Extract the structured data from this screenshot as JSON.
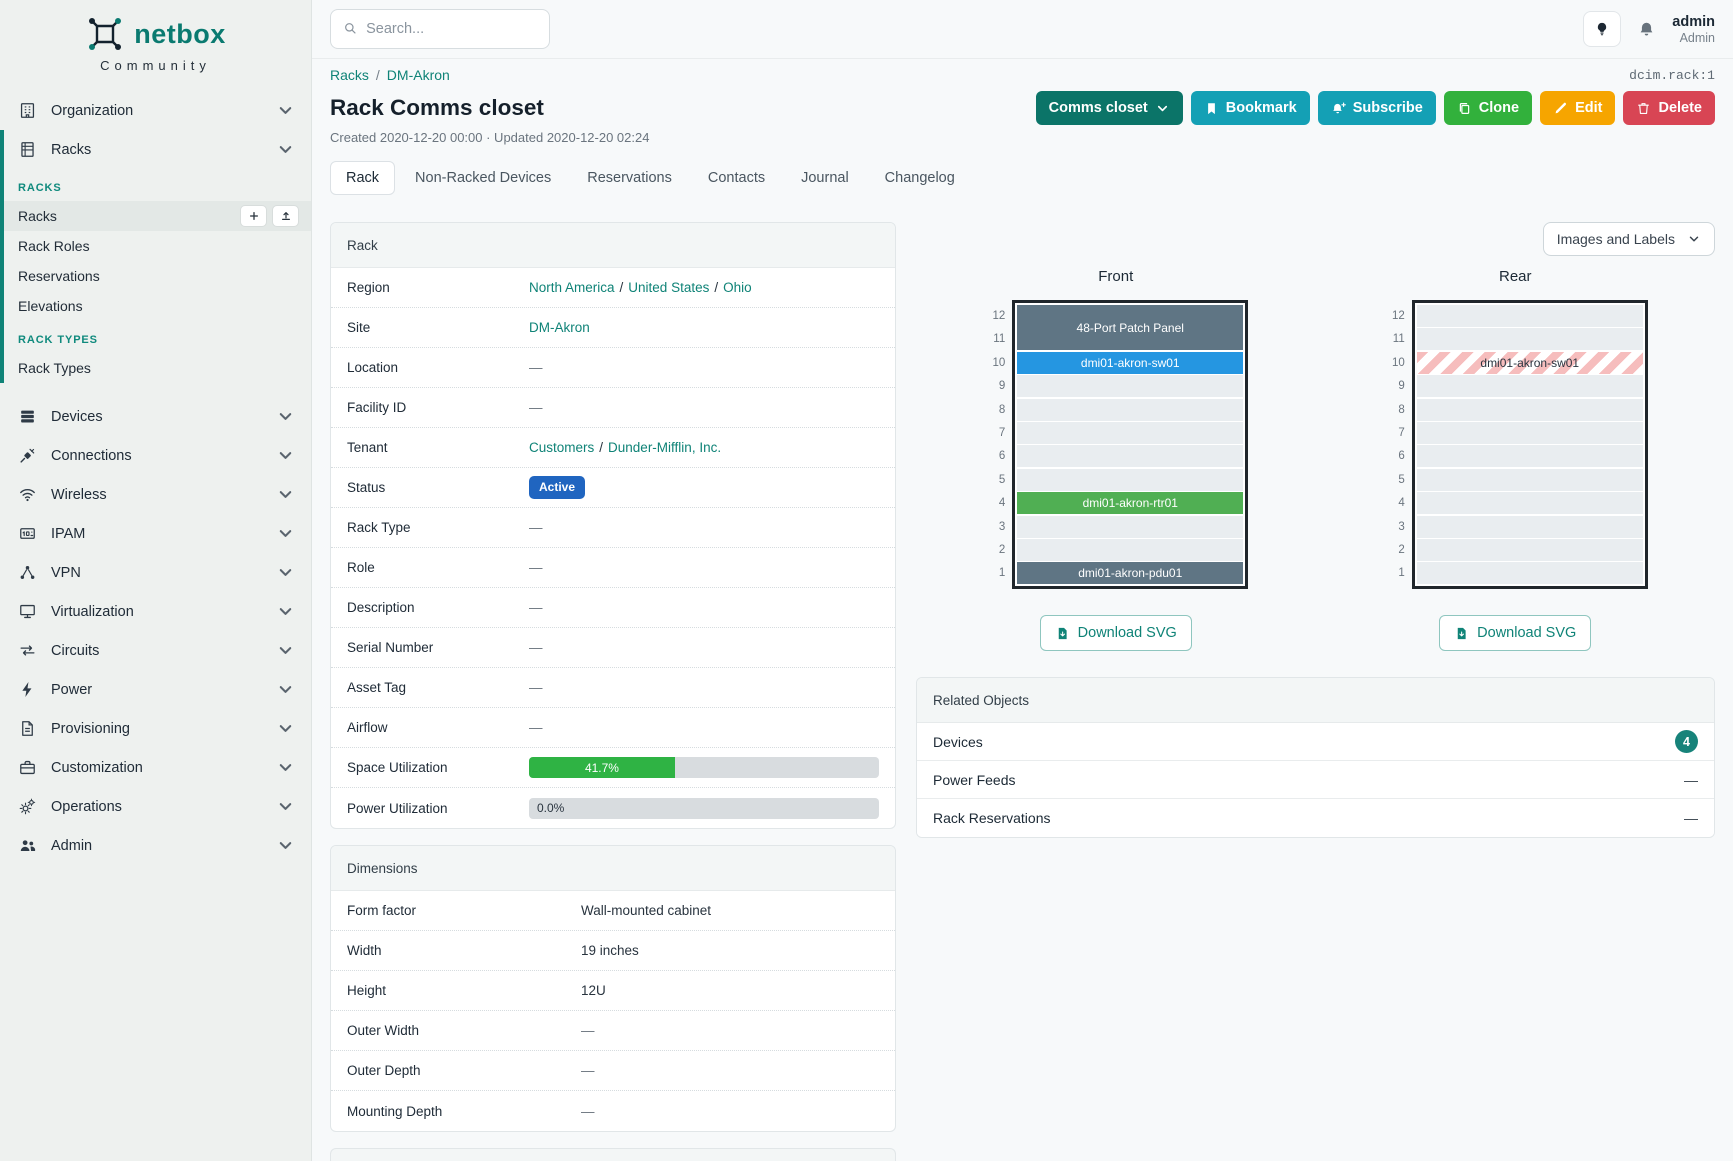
{
  "brand": {
    "name": "netbox",
    "tagline": "Community"
  },
  "topbar": {
    "search_placeholder": "Search...",
    "username": "admin",
    "role": "Admin"
  },
  "page_header": {
    "breadcrumbs": [
      {
        "label": "Racks"
      },
      {
        "label": "DM-Akron"
      }
    ],
    "object_ref": "dcim.rack:1",
    "title": "Rack Comms closet",
    "meta": "Created 2020-12-20 00:00 · Updated 2020-12-20 02:24",
    "buttons": [
      {
        "id": "rename",
        "label": "Comms closet",
        "color": "#0b7468",
        "icon_after": "chevron-down-icon"
      },
      {
        "id": "bookmark",
        "label": "Bookmark",
        "color": "#14a0b5",
        "icon": "bookmark-icon"
      },
      {
        "id": "subscribe",
        "label": "Subscribe",
        "color": "#14a0b5",
        "icon": "bell-plus-icon"
      },
      {
        "id": "clone",
        "label": "Clone",
        "color": "#32b13c",
        "icon": "copy-icon"
      },
      {
        "id": "edit",
        "label": "Edit",
        "color": "#f6a500",
        "icon": "pencil-icon"
      },
      {
        "id": "delete",
        "label": "Delete",
        "color": "#d84554",
        "icon": "trash-icon"
      }
    ]
  },
  "tabs": [
    {
      "label": "Rack",
      "active": true
    },
    {
      "label": "Non-Racked Devices"
    },
    {
      "label": "Reservations"
    },
    {
      "label": "Contacts"
    },
    {
      "label": "Journal"
    },
    {
      "label": "Changelog"
    }
  ],
  "sidebar": {
    "top_items": [
      {
        "label": "Organization",
        "icon": "organization-icon",
        "chevron": true
      },
      {
        "label": "Racks",
        "icon": "racks-icon",
        "chevron": true,
        "expanded": true
      }
    ],
    "racks_menu": {
      "groups": [
        {
          "header": "RACKS",
          "items": [
            {
              "label": "Racks",
              "active": true,
              "actions": [
                {
                  "icon": "plus-icon",
                  "name": "add"
                },
                {
                  "icon": "upload-icon",
                  "name": "import"
                }
              ]
            },
            {
              "label": "Rack Roles"
            },
            {
              "label": "Reservations"
            },
            {
              "label": "Elevations"
            }
          ]
        },
        {
          "header": "RACK TYPES",
          "items": [
            {
              "label": "Rack Types"
            }
          ]
        }
      ]
    },
    "bottom_items": [
      {
        "label": "Devices",
        "icon": "devices-icon",
        "chevron": true
      },
      {
        "label": "Connections",
        "icon": "connections-icon",
        "chevron": true
      },
      {
        "label": "Wireless",
        "icon": "wireless-icon",
        "chevron": true
      },
      {
        "label": "IPAM",
        "icon": "ipam-icon",
        "chevron": true
      },
      {
        "label": "VPN",
        "icon": "vpn-icon",
        "chevron": true
      },
      {
        "label": "Virtualization",
        "icon": "virtualization-icon",
        "chevron": true
      },
      {
        "label": "Circuits",
        "icon": "circuits-icon",
        "chevron": true
      },
      {
        "label": "Power",
        "icon": "power-icon",
        "chevron": true
      },
      {
        "label": "Provisioning",
        "icon": "provisioning-icon",
        "chevron": true
      },
      {
        "label": "Customization",
        "icon": "customization-icon",
        "chevron": true
      },
      {
        "label": "Operations",
        "icon": "operations-icon",
        "chevron": true
      },
      {
        "label": "Admin",
        "icon": "admin-icon",
        "chevron": true
      }
    ]
  },
  "rack_panel": {
    "title": "Rack",
    "rows": [
      {
        "label": "Region",
        "kind": "links",
        "parts": [
          {
            "text": "North America",
            "link": true
          },
          {
            "text": "/"
          },
          {
            "text": "United States",
            "link": true
          },
          {
            "text": "/"
          },
          {
            "text": "Ohio",
            "link": true
          }
        ]
      },
      {
        "label": "Site",
        "kind": "links",
        "parts": [
          {
            "text": "DM-Akron",
            "link": true
          }
        ]
      },
      {
        "label": "Location",
        "kind": "dash"
      },
      {
        "label": "Facility ID",
        "kind": "dash"
      },
      {
        "label": "Tenant",
        "kind": "links",
        "parts": [
          {
            "text": "Customers",
            "link": true
          },
          {
            "text": "/"
          },
          {
            "text": "Dunder-Mifflin, Inc.",
            "link": true
          }
        ]
      },
      {
        "label": "Status",
        "kind": "badge",
        "text": "Active",
        "bg": "#2065c0"
      },
      {
        "label": "Rack Type",
        "kind": "dash"
      },
      {
        "label": "Role",
        "kind": "dash"
      },
      {
        "label": "Description",
        "kind": "dash"
      },
      {
        "label": "Serial Number",
        "kind": "dash"
      },
      {
        "label": "Asset Tag",
        "kind": "dash"
      },
      {
        "label": "Airflow",
        "kind": "dash"
      },
      {
        "label": "Space Utilization",
        "kind": "progress",
        "percent": 41.7,
        "text": "41.7%",
        "fill": "#2fb344"
      },
      {
        "label": "Power Utilization",
        "kind": "progress",
        "percent": 0,
        "text": "0.0%",
        "fill": "#2fb344"
      }
    ]
  },
  "dimensions_panel": {
    "title": "Dimensions",
    "rows": [
      {
        "label": "Form factor",
        "kind": "text",
        "text": "Wall-mounted cabinet"
      },
      {
        "label": "Width",
        "kind": "text",
        "text": "19 inches"
      },
      {
        "label": "Height",
        "kind": "text",
        "text": "12U"
      },
      {
        "label": "Outer Width",
        "kind": "dash"
      },
      {
        "label": "Outer Depth",
        "kind": "dash"
      },
      {
        "label": "Mounting Depth",
        "kind": "dash"
      }
    ]
  },
  "elevations": {
    "display_mode": "Images and Labels",
    "download_label": "Download SVG",
    "unit_numbers": [
      12,
      11,
      10,
      9,
      8,
      7,
      6,
      5,
      4,
      3,
      2,
      1
    ],
    "front": {
      "title": "Front",
      "units": [
        {
          "u": 12,
          "span": 2,
          "label": "48-Port Patch Panel",
          "bg": "#5f7584",
          "fg": "#ffffff"
        },
        {
          "u": 10,
          "span": 1,
          "label": "dmi01-akron-sw01",
          "bg": "#2596e1",
          "fg": "#ffffff"
        },
        {
          "u": 9
        },
        {
          "u": 8
        },
        {
          "u": 7
        },
        {
          "u": 6
        },
        {
          "u": 5
        },
        {
          "u": 4,
          "span": 1,
          "label": "dmi01-akron-rtr01",
          "bg": "#50af53",
          "fg": "#ffffff"
        },
        {
          "u": 3
        },
        {
          "u": 2
        },
        {
          "u": 1,
          "span": 1,
          "label": "dmi01-akron-pdu01",
          "bg": "#5f7584",
          "fg": "#ffffff"
        }
      ]
    },
    "rear": {
      "title": "Rear",
      "units": [
        {
          "u": 12
        },
        {
          "u": 11
        },
        {
          "u": 10,
          "span": 1,
          "label": "dmi01-akron-sw01",
          "striped": true,
          "fg": "#2a3540"
        },
        {
          "u": 9
        },
        {
          "u": 8
        },
        {
          "u": 7
        },
        {
          "u": 6
        },
        {
          "u": 5
        },
        {
          "u": 4
        },
        {
          "u": 3
        },
        {
          "u": 2
        },
        {
          "u": 1
        }
      ]
    }
  },
  "related_objects": {
    "title": "Related Objects",
    "rows": [
      {
        "label": "Devices",
        "count": "4"
      },
      {
        "label": "Power Feeds",
        "value": "—"
      },
      {
        "label": "Rack Reservations",
        "value": "—"
      }
    ]
  },
  "colors": {
    "accent": "#0f8377",
    "count_badge": "#17837a",
    "status_active": "#2065c0",
    "utilization_green": "#2fb344"
  }
}
